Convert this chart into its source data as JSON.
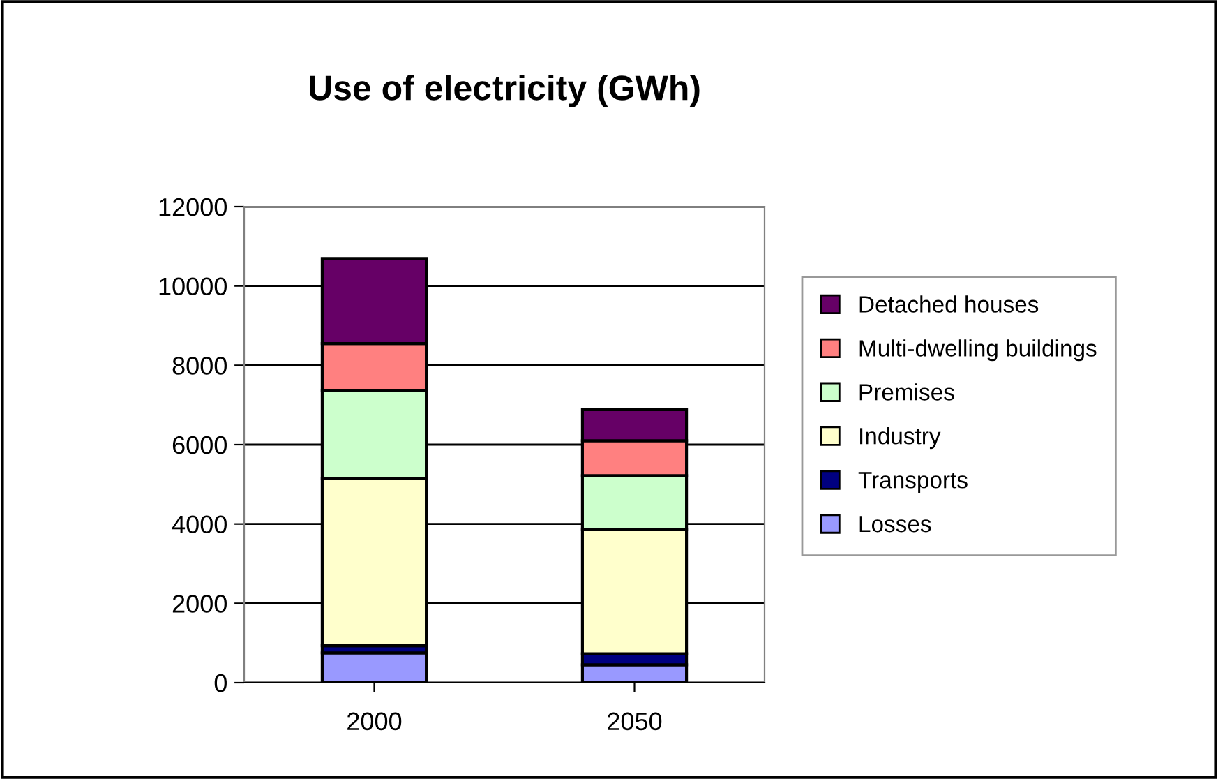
{
  "chart_data": {
    "type": "bar",
    "title": "Use of electricity (GWh)",
    "categories": [
      "2000",
      "2050"
    ],
    "stacked": true,
    "series": [
      {
        "name": "Losses",
        "color": "#9999ff",
        "values": [
          750,
          450
        ]
      },
      {
        "name": "Transports",
        "color": "#000080",
        "values": [
          180,
          280
        ]
      },
      {
        "name": "Industry",
        "color": "#ffffcc",
        "values": [
          4220,
          3140
        ]
      },
      {
        "name": "Premises",
        "color": "#ccffcc",
        "values": [
          2220,
          1350
        ]
      },
      {
        "name": "Multi-dwelling buildings",
        "color": "#ff8080",
        "values": [
          1180,
          880
        ]
      },
      {
        "name": "Detached houses",
        "color": "#660066",
        "values": [
          2140,
          780
        ]
      }
    ],
    "ylim": [
      0,
      12000
    ],
    "yticks": [
      0,
      2000,
      4000,
      6000,
      8000,
      10000,
      12000
    ],
    "grid": "y",
    "legend": "right"
  }
}
